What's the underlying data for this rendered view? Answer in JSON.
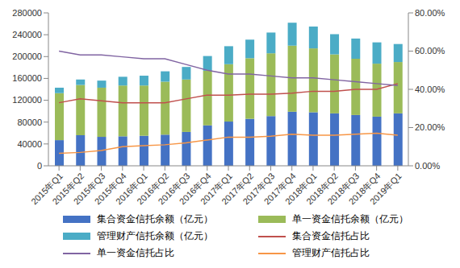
{
  "chart_data": {
    "type": "bar",
    "stacked": true,
    "grid": false,
    "legend": "bottom",
    "categories": [
      "2015年Q1",
      "2015年Q2",
      "2015年Q3",
      "2015年Q4",
      "2016年Q1",
      "2016年Q2",
      "2016年Q3",
      "2016年Q4",
      "2017年Q1",
      "2017年Q2",
      "2017年Q3",
      "2017年Q4",
      "2018年Q1",
      "2018年Q2",
      "2018年Q3",
      "2018年Q4",
      "2019年Q1"
    ],
    "ylim": [
      0,
      280000
    ],
    "yticks": [
      0,
      40000,
      80000,
      120000,
      160000,
      200000,
      240000,
      280000
    ],
    "y2lim": [
      0,
      80
    ],
    "y2ticks": [
      {
        "value": 0,
        "label": "0.00%"
      },
      {
        "value": 20,
        "label": "20.00%"
      },
      {
        "value": 40,
        "label": "40.00%"
      },
      {
        "value": 60,
        "label": "60.00%"
      },
      {
        "value": 80,
        "label": "80.00%"
      }
    ],
    "series": [
      {
        "name": "集合资金信托余额（亿元）",
        "type": "bar",
        "color": "#4472c4",
        "values": [
          47000,
          56000,
          53000,
          54000,
          55000,
          57000,
          62000,
          74000,
          81000,
          86000,
          91000,
          99000,
          98000,
          96000,
          93000,
          90000,
          96000
        ]
      },
      {
        "name": "单一资金信托余额（亿元）",
        "type": "bar",
        "color": "#9bbb59",
        "values": [
          86000,
          92000,
          90000,
          93000,
          92000,
          97000,
          96000,
          100000,
          105000,
          111000,
          115000,
          121000,
          117000,
          108000,
          103000,
          97000,
          94000
        ]
      },
      {
        "name": "管理财产信托余额（亿元）",
        "type": "bar",
        "color": "#4bacc6",
        "values": [
          10000,
          10000,
          13000,
          16000,
          18000,
          19000,
          23000,
          27000,
          33000,
          34000,
          38000,
          42000,
          40000,
          37000,
          37000,
          39000,
          33000
        ]
      },
      {
        "name": "集合资金信托占比",
        "type": "line",
        "axis": "y2",
        "color": "#c0504d",
        "values": [
          33,
          35,
          34,
          33,
          33,
          33,
          35,
          37,
          37,
          37.5,
          37.5,
          38,
          39,
          39,
          40,
          40,
          43
        ]
      },
      {
        "name": "单一资金信托占比",
        "type": "line",
        "axis": "y2",
        "color": "#8064a2",
        "values": [
          60,
          58,
          58,
          57,
          56,
          56,
          53,
          50,
          48,
          48,
          47,
          46,
          46,
          45,
          44,
          43,
          42
        ]
      },
      {
        "name": "管理财产信托占比",
        "type": "line",
        "axis": "y2",
        "color": "#f79646",
        "values": [
          6.5,
          7,
          8,
          10,
          10.5,
          11,
          12,
          13.5,
          15,
          15,
          15.5,
          16.5,
          16,
          16,
          16.5,
          17,
          16
        ]
      }
    ]
  }
}
